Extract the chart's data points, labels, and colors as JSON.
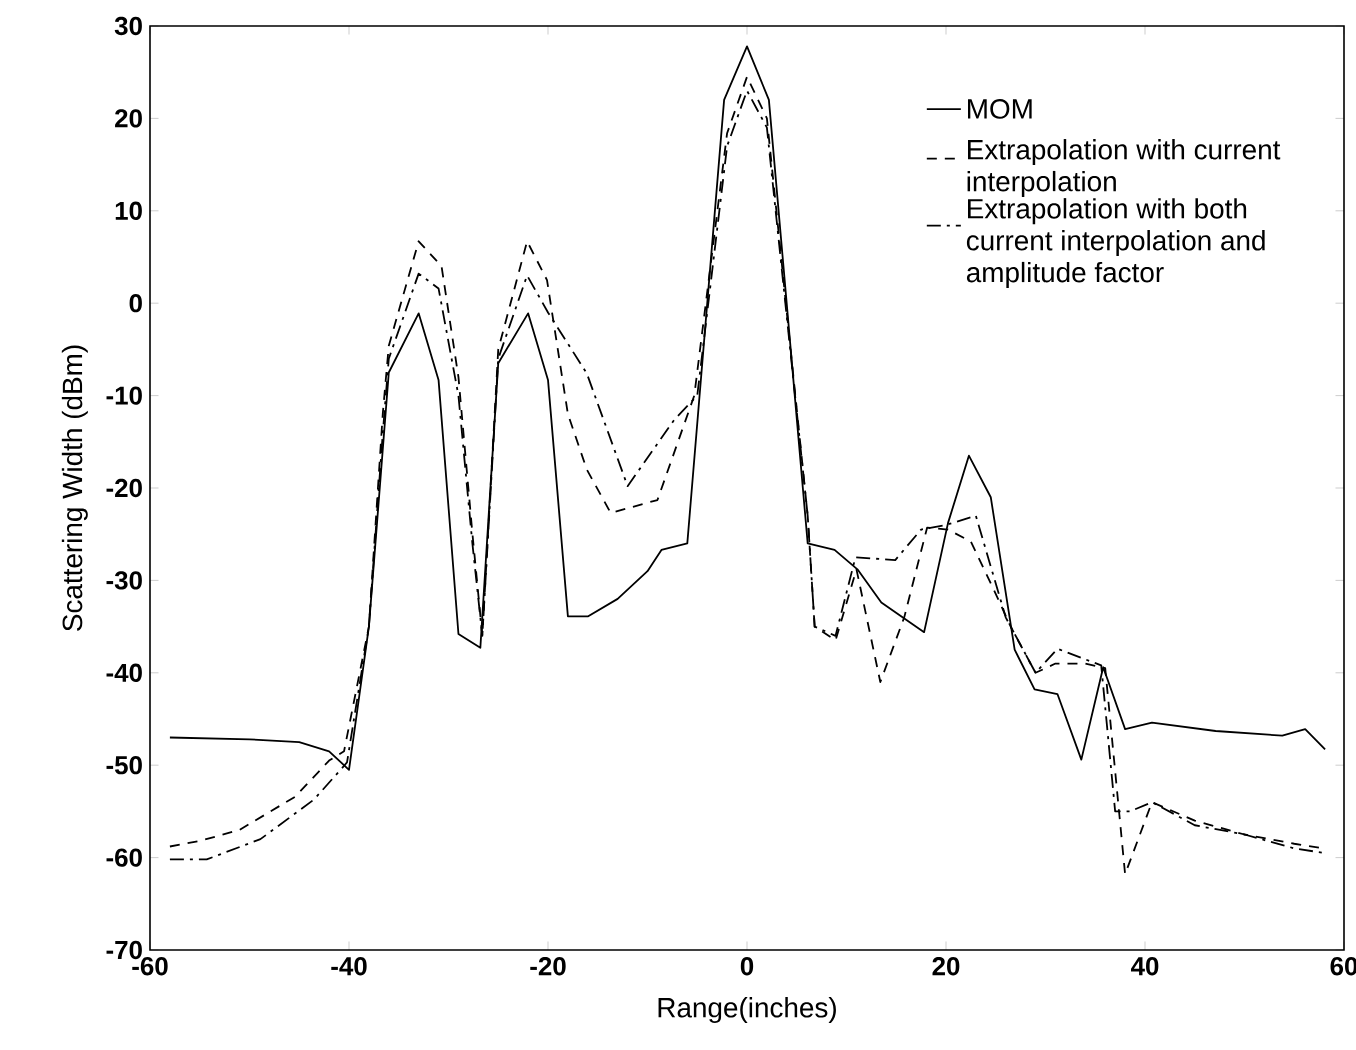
{
  "chart_data": {
    "type": "line",
    "xlabel": "Range(inches)",
    "ylabel": "Scattering Width (dBm)",
    "xlim": [
      -60,
      60
    ],
    "ylim": [
      -70,
      30
    ],
    "xticks": [
      -60,
      -40,
      -20,
      0,
      20,
      40,
      60
    ],
    "yticks": [
      -70,
      -60,
      -50,
      -40,
      -30,
      -20,
      -10,
      0,
      10,
      20,
      30
    ],
    "legend": "top right",
    "marker": "none",
    "series": [
      {
        "name": "MOM",
        "color": "#000000",
        "line_style": "solid",
        "x": [
          -58,
          -50,
          -45,
          -42,
          -40,
          -38,
          -36,
          -33,
          -31,
          -29,
          -26.8,
          -25,
          -22,
          -20,
          -18,
          -16,
          -13,
          -10,
          -8.6,
          -6,
          -2.3,
          0,
          2.2,
          6.1,
          8.8,
          11.1,
          13.5,
          17.8,
          20.2,
          22.3,
          24.5,
          26.9,
          28.9,
          31.2,
          33.6,
          35.8,
          38,
          40.7,
          47.1,
          53.8,
          56.1,
          58.1
        ],
        "values": [
          -47,
          -47.2,
          -47.5,
          -48.5,
          -50.5,
          -35,
          -7.5,
          -1.1,
          -8.3,
          -35.8,
          -37.3,
          -6.5,
          -1.1,
          -8.3,
          -33.9,
          -33.9,
          -32,
          -29,
          -26.7,
          -26,
          22,
          27.8,
          22,
          -26,
          -26.7,
          -28.8,
          -32.4,
          -35.6,
          -23.8,
          -16.5,
          -21,
          -37.5,
          -41.8,
          -42.3,
          -49.4,
          -39.4,
          -46.1,
          -45.4,
          -46.3,
          -46.8,
          -46.1,
          -48.3
        ]
      },
      {
        "name": "Extrapolation with current interpolation",
        "color": "#000000",
        "line_style": "dashed",
        "x": [
          -58,
          -55,
          -51,
          -45.4,
          -42,
          -40.5,
          -38,
          -36.6,
          -36,
          -33,
          -30.7,
          -29,
          -27.6,
          -26.6,
          -25,
          -22.1,
          -20.1,
          -18,
          -16.1,
          -13.7,
          -9,
          -5.3,
          -2,
          0,
          2,
          6.1,
          6.8,
          8.9,
          11,
          13.4,
          15.8,
          18.1,
          20.2,
          22.5,
          24.8,
          26.5,
          29,
          31,
          34,
          36,
          38,
          40.7,
          45,
          50,
          55,
          58
        ],
        "values": [
          -58.8,
          -58.2,
          -57,
          -53.4,
          -49.5,
          -48.5,
          -35,
          -11.9,
          -4.6,
          6.7,
          4,
          -8,
          -24.9,
          -36,
          -5,
          6.7,
          2.5,
          -12,
          -18,
          -22.7,
          -21.3,
          -10,
          18.4,
          24.5,
          20,
          -23,
          -35,
          -36.5,
          -28.8,
          -41,
          -34,
          -24.3,
          -24.5,
          -25.8,
          -31,
          -35,
          -40,
          -39,
          -39,
          -39.5,
          -61.8,
          -54,
          -56,
          -57.5,
          -58.5,
          -59
        ]
      },
      {
        "name": "Extrapolation with both current interpolation and amplitude factor",
        "color": "#000000",
        "line_style": "dashdot",
        "x": [
          -58,
          -54.3,
          -48.9,
          -43.5,
          -40.2,
          -38,
          -36.6,
          -36,
          -33,
          -31,
          -29,
          -27.6,
          -26.6,
          -25,
          -22.1,
          -20,
          -16.1,
          -12,
          -7.3,
          -5,
          -2,
          0,
          2,
          6.1,
          6.8,
          8.9,
          10.9,
          14.9,
          17.5,
          20,
          23,
          26,
          29,
          31.2,
          35.6,
          37,
          38.5,
          40.7,
          45,
          50,
          55,
          58
        ],
        "values": [
          -60.2,
          -60.2,
          -58,
          -53.7,
          -49.7,
          -35,
          -14,
          -6,
          3.2,
          1.6,
          -10,
          -26,
          -36,
          -6,
          3,
          -1,
          -7.6,
          -19.8,
          -12.6,
          -10,
          17,
          23,
          19,
          -23,
          -35,
          -36,
          -27.5,
          -27.8,
          -24.5,
          -24,
          -23,
          -34,
          -40,
          -37.4,
          -39.2,
          -55,
          -55,
          -54,
          -56.5,
          -57.5,
          -59,
          -59.5
        ]
      }
    ]
  }
}
